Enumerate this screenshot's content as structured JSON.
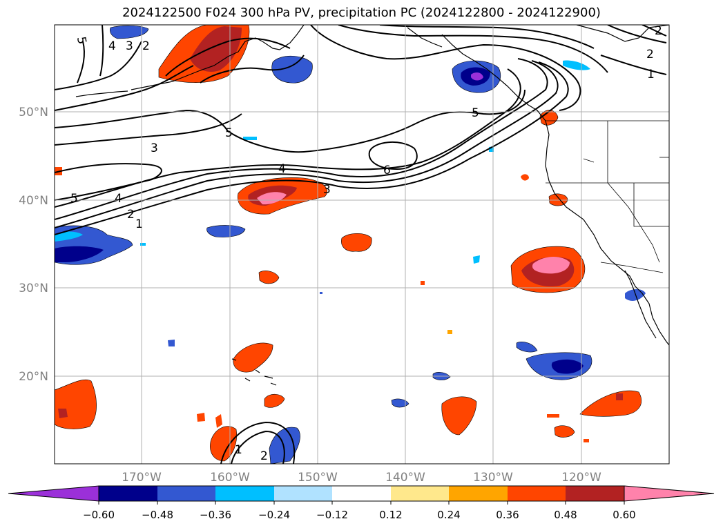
{
  "title": "2024122500 F024 300 hPa PV, precipitation PC (2024122800 - 2024122900)",
  "map": {
    "lat_ticks": [
      "50°N",
      "40°N",
      "30°N",
      "20°N"
    ],
    "lon_ticks": [
      "170°W",
      "160°W",
      "150°W",
      "140°W",
      "130°W",
      "120°W"
    ],
    "pv_contour_labels": [
      "5",
      "4",
      "3",
      "2",
      "3",
      "4",
      "5",
      "6",
      "5",
      "5",
      "4",
      "2",
      "1",
      "3",
      "2",
      "1",
      "2",
      "1",
      "2"
    ],
    "colors": {
      "coast": "#000000",
      "grid": "#b0b0b0",
      "contour": "#000000"
    }
  },
  "colorbar": {
    "ticks": [
      "−0.60",
      "−0.48",
      "−0.36",
      "−0.24",
      "−0.12",
      "0.12",
      "0.24",
      "0.36",
      "0.48",
      "0.60"
    ],
    "bins": [
      {
        "range": "< -0.60",
        "color": "#9b30d9"
      },
      {
        "range": "-0.60 to -0.48",
        "color": "#00008b"
      },
      {
        "range": "-0.48 to -0.36",
        "color": "#3358d1"
      },
      {
        "range": "-0.36 to -0.24",
        "color": "#00bfff"
      },
      {
        "range": "-0.24 to -0.12",
        "color": "#b0e2ff"
      },
      {
        "range": "-0.12 to 0.12",
        "color": "#ffffff"
      },
      {
        "range": "0.12 to 0.24",
        "color": "#ffe88c"
      },
      {
        "range": "0.24 to 0.36",
        "color": "#ffa500"
      },
      {
        "range": "0.36 to 0.48",
        "color": "#ff4500"
      },
      {
        "range": "0.48 to 0.60",
        "color": "#b22222"
      },
      {
        "range": "> 0.60",
        "color": "#ff82ab"
      }
    ]
  }
}
